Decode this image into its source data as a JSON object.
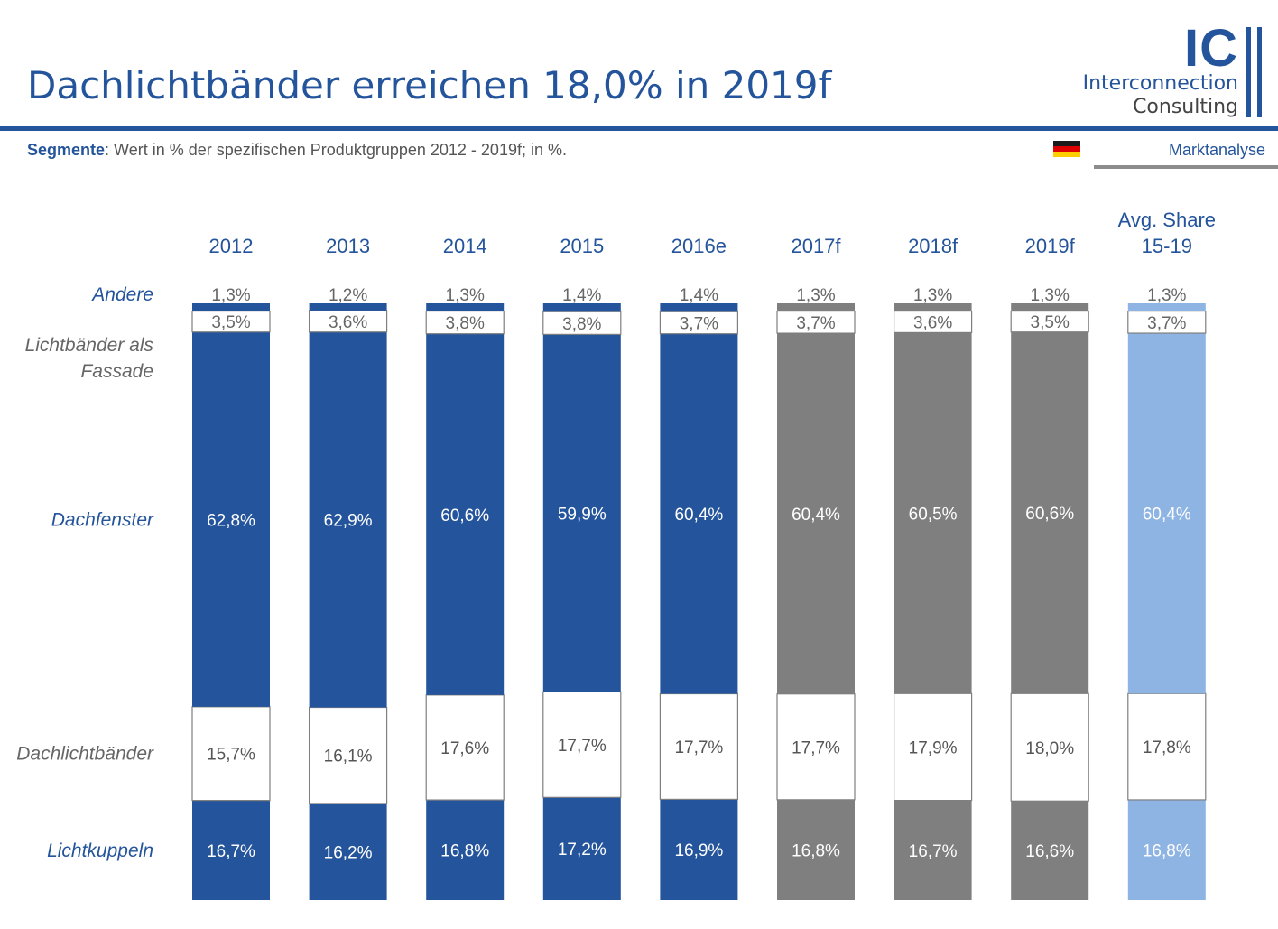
{
  "header": {
    "title": "Dachlichtbänder erreichen 18,0% in 2019f",
    "subtitle_label": "Segmente",
    "subtitle_text": ": Wert in % der spezifischen Produktgruppen 2012 - 2019f; in %.",
    "tab_label": "Marktanalyse"
  },
  "logo": {
    "mark": "IC",
    "line1": "Interconnection",
    "line2": "Consulting"
  },
  "flag_icon": "germany-flag-icon",
  "colors": {
    "title_blue": "#24549b",
    "actual_blue": "#24549b",
    "forecast_gray": "#7f7f7f",
    "average_lightblue": "#8eb4e3",
    "white_segment": "#ffffff"
  },
  "chart_data": {
    "type": "bar",
    "stacked": true,
    "normalized": true,
    "categories": [
      "2012",
      "2013",
      "2014",
      "2015",
      "2016e",
      "2017f",
      "2018f",
      "2019f",
      "Avg. Share 15-19"
    ],
    "category_colors": [
      "#24549b",
      "#24549b",
      "#24549b",
      "#24549b",
      "#24549b",
      "#7f7f7f",
      "#7f7f7f",
      "#7f7f7f",
      "#8eb4e3"
    ],
    "series": [
      {
        "name": "Lichtkuppeln",
        "values": [
          16.7,
          16.2,
          16.8,
          17.2,
          16.9,
          16.8,
          16.7,
          16.6,
          16.8
        ],
        "labels": [
          "16,7%",
          "16,2%",
          "16,8%",
          "17,2%",
          "16,9%",
          "16,8%",
          "16,7%",
          "16,6%",
          "16,8%"
        ]
      },
      {
        "name": "Dachlichtbänder",
        "values": [
          15.7,
          16.1,
          17.6,
          17.7,
          17.7,
          17.7,
          17.9,
          18.0,
          17.8
        ],
        "labels": [
          "15,7%",
          "16,1%",
          "17,6%",
          "17,7%",
          "17,7%",
          "17,7%",
          "17,9%",
          "18,0%",
          "17,8%"
        ]
      },
      {
        "name": "Dachfenster",
        "values": [
          62.8,
          62.9,
          60.6,
          59.9,
          60.4,
          60.4,
          60.5,
          60.6,
          60.4
        ],
        "labels": [
          "62,8%",
          "62,9%",
          "60,6%",
          "59,9%",
          "60,4%",
          "60,4%",
          "60,5%",
          "60,6%",
          "60,4%"
        ]
      },
      {
        "name": "Lichtbänder als Fassade",
        "values": [
          3.5,
          3.6,
          3.8,
          3.8,
          3.7,
          3.7,
          3.6,
          3.5,
          3.7
        ],
        "labels": [
          "3,5%",
          "3,6%",
          "3,8%",
          "3,8%",
          "3,7%",
          "3,7%",
          "3,6%",
          "3,5%",
          "3,7%"
        ]
      },
      {
        "name": "Andere",
        "values": [
          1.3,
          1.2,
          1.3,
          1.4,
          1.4,
          1.3,
          1.3,
          1.3,
          1.3
        ],
        "labels": [
          "1,3%",
          "1,2%",
          "1,3%",
          "1,4%",
          "1,4%",
          "1,3%",
          "1,3%",
          "1,3%",
          "1,3%"
        ]
      }
    ],
    "legend_labels": [
      "Andere",
      "Lichtbänder als Fassade",
      "Dachfenster",
      "Dachlichtbänder",
      "Lichtkuppeln"
    ],
    "ylim": [
      0,
      100
    ],
    "grid": false
  }
}
